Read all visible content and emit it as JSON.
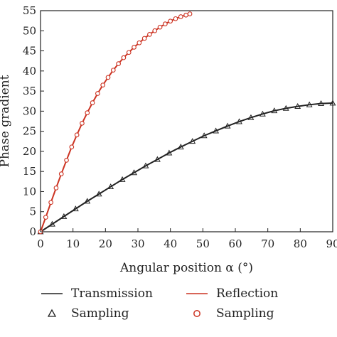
{
  "chart_data": {
    "type": "line",
    "xlabel": "Angular position α (°)",
    "ylabel": "Phase gradient",
    "xlim": [
      0,
      90
    ],
    "ylim": [
      0,
      55
    ],
    "xticks": [
      "0",
      "10",
      "20",
      "30",
      "40",
      "50",
      "60",
      "70",
      "80",
      "90"
    ],
    "yticks": [
      "0",
      "5",
      "10",
      "15",
      "20",
      "25",
      "30",
      "35",
      "40",
      "45",
      "50",
      "55"
    ],
    "grid": false,
    "legend_position": "bottom",
    "series": [
      {
        "name": "Transmission",
        "color": "#222222",
        "style": "line",
        "x": [
          0,
          3.6,
          7.2,
          10.8,
          14.4,
          18,
          21.6,
          25.2,
          28.8,
          32.4,
          36,
          39.6,
          43.2,
          46.8,
          50.4,
          54,
          57.6,
          61.2,
          64.8,
          68.4,
          72,
          75.6,
          79.2,
          82.8,
          86.4,
          90
        ],
        "y": [
          0,
          1.9,
          3.8,
          5.7,
          7.6,
          9.4,
          11.2,
          13.0,
          14.7,
          16.4,
          18.0,
          19.6,
          21.1,
          22.5,
          23.9,
          25.1,
          26.3,
          27.4,
          28.4,
          29.3,
          30.1,
          30.7,
          31.2,
          31.6,
          31.9,
          32.0
        ]
      },
      {
        "name": "Sampling",
        "color": "#222222",
        "style": "triangle-markers",
        "x": [
          0,
          3.6,
          7.2,
          10.8,
          14.4,
          18,
          21.6,
          25.2,
          28.8,
          32.4,
          36,
          39.6,
          43.2,
          46.8,
          50.4,
          54,
          57.6,
          61.2,
          64.8,
          68.4,
          72,
          75.6,
          79.2,
          82.8,
          86.4,
          90
        ],
        "y": [
          0,
          1.9,
          3.8,
          5.7,
          7.6,
          9.4,
          11.2,
          13.0,
          14.7,
          16.4,
          18.0,
          19.6,
          21.1,
          22.5,
          23.9,
          25.1,
          26.3,
          27.4,
          28.4,
          29.3,
          30.1,
          30.7,
          31.2,
          31.6,
          31.9,
          32.0
        ]
      },
      {
        "name": "Reflection",
        "color": "#cc3322",
        "style": "line",
        "x": [
          0,
          1.6,
          3.2,
          4.8,
          6.4,
          8.0,
          9.6,
          11.2,
          12.8,
          14.4,
          16.0,
          17.6,
          19.2,
          20.8,
          22.4,
          24.0,
          25.6,
          27.2,
          28.8,
          30.4,
          32.0,
          33.6,
          35.2,
          36.8,
          38.4,
          40.0,
          41.6,
          43.2,
          44.8,
          46.0
        ],
        "y": [
          0,
          3.6,
          7.3,
          10.9,
          14.4,
          17.8,
          21.1,
          24.1,
          27.0,
          29.6,
          32.1,
          34.4,
          36.5,
          38.4,
          40.2,
          41.8,
          43.3,
          44.6,
          45.9,
          47.0,
          48.1,
          49.1,
          50.0,
          50.9,
          51.7,
          52.4,
          53.0,
          53.5,
          53.9,
          54.2
        ]
      },
      {
        "name": "Sampling",
        "color": "#cc3322",
        "style": "circle-markers",
        "x": [
          0,
          1.6,
          3.2,
          4.8,
          6.4,
          8.0,
          9.6,
          11.2,
          12.8,
          14.4,
          16.0,
          17.6,
          19.2,
          20.8,
          22.4,
          24.0,
          25.6,
          27.2,
          28.8,
          30.4,
          32.0,
          33.6,
          35.2,
          36.8,
          38.4,
          40.0,
          41.6,
          43.2,
          44.8,
          46.0
        ],
        "y": [
          0,
          3.6,
          7.3,
          10.9,
          14.4,
          17.8,
          21.1,
          24.1,
          27.0,
          29.6,
          32.1,
          34.4,
          36.5,
          38.4,
          40.2,
          41.8,
          43.3,
          44.6,
          45.9,
          47.0,
          48.1,
          49.1,
          50.0,
          50.9,
          51.7,
          52.4,
          53.0,
          53.5,
          53.9,
          54.2
        ]
      }
    ],
    "legend": [
      {
        "label": "Transmission",
        "symbol": "line",
        "color": "#222222"
      },
      {
        "label": "Reflection",
        "symbol": "line",
        "color": "#cc3322"
      },
      {
        "label": "Sampling",
        "symbol": "triangle",
        "color": "#222222"
      },
      {
        "label": "Sampling",
        "symbol": "circle",
        "color": "#cc3322"
      }
    ]
  }
}
